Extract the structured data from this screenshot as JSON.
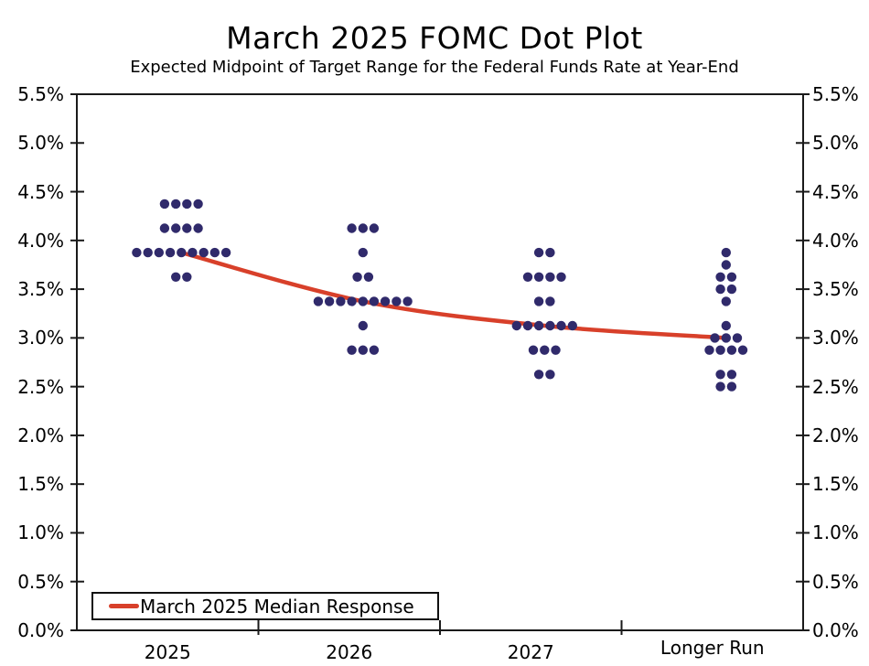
{
  "header": {
    "title": "March 2025 FOMC Dot Plot",
    "subtitle": "Expected Midpoint of Target Range for the Federal Funds Rate at Year-End"
  },
  "legend": {
    "label": "March 2025 Median Response"
  },
  "colors": {
    "dot": "#302a6b",
    "median_line": "#d8402a",
    "axis": "#1a1a1a",
    "text": "#000000",
    "background": "#ffffff"
  },
  "chart_data": {
    "type": "scatter",
    "subtype": "fomc-dot-plot",
    "title": "March 2025 FOMC Dot Plot",
    "subtitle": "Expected Midpoint of Target Range for the Federal Funds Rate at Year-End",
    "categories": [
      "2025",
      "2026",
      "2027",
      "Longer Run"
    ],
    "y_axis": {
      "min": 0,
      "max": 5.5,
      "step": 0.5,
      "unit": "%",
      "label_sides": "both",
      "tick_labels": [
        "5.5%",
        "5.0%",
        "4.5%",
        "4.0%",
        "3.5%",
        "3.0%",
        "2.5%",
        "2.0%",
        "1.5%",
        "1.0%",
        "0.5%",
        "0.0%"
      ]
    },
    "grid": false,
    "dot_distribution": [
      {
        "category": "2025",
        "dots": [
          {
            "rate": 4.375,
            "count": 4
          },
          {
            "rate": 4.125,
            "count": 4
          },
          {
            "rate": 3.875,
            "count": 9
          },
          {
            "rate": 3.625,
            "count": 2
          }
        ]
      },
      {
        "category": "2026",
        "dots": [
          {
            "rate": 4.125,
            "count": 3
          },
          {
            "rate": 3.875,
            "count": 1
          },
          {
            "rate": 3.625,
            "count": 2
          },
          {
            "rate": 3.375,
            "count": 9
          },
          {
            "rate": 3.125,
            "count": 1
          },
          {
            "rate": 2.875,
            "count": 3
          }
        ]
      },
      {
        "category": "2027",
        "dots": [
          {
            "rate": 3.875,
            "count": 2
          },
          {
            "rate": 3.625,
            "count": 4
          },
          {
            "rate": 3.375,
            "count": 2
          },
          {
            "rate": 3.125,
            "count": 6
          },
          {
            "rate": 2.875,
            "count": 3
          },
          {
            "rate": 2.625,
            "count": 2
          }
        ]
      },
      {
        "category": "Longer Run",
        "dots": [
          {
            "rate": 3.875,
            "count": 1
          },
          {
            "rate": 3.75,
            "count": 1
          },
          {
            "rate": 3.625,
            "count": 2
          },
          {
            "rate": 3.5,
            "count": 2
          },
          {
            "rate": 3.375,
            "count": 1
          },
          {
            "rate": 3.125,
            "count": 1
          },
          {
            "rate": 3.0,
            "count": 3
          },
          {
            "rate": 2.875,
            "count": 4
          },
          {
            "rate": 2.625,
            "count": 2
          },
          {
            "rate": 2.5,
            "count": 2
          }
        ]
      }
    ],
    "series": [
      {
        "name": "March 2025 Median Response",
        "values": [
          3.875,
          3.375,
          3.125,
          3.0
        ],
        "color": "#d8402a",
        "style": "smooth-line"
      }
    ],
    "legend_position": "bottom-left"
  }
}
